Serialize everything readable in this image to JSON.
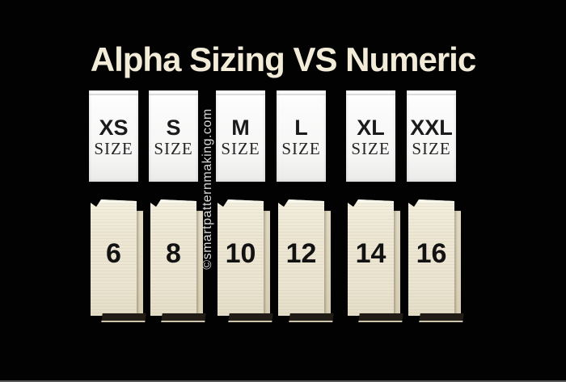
{
  "title": "Alpha Sizing VS Numeric",
  "watermark": "©smartpatternmaking.com",
  "colors": {
    "background": "#020202",
    "title_text": "#f1ebd8",
    "alpha_label_bg": "#fbfbfb",
    "numeric_label_bg": "#ece6d3",
    "label_text": "#1b1b1b",
    "watermark_text": "#d8d8d8"
  },
  "labels": [
    {
      "alpha": "XS",
      "size_word": "SIZE",
      "numeric": "6"
    },
    {
      "alpha": "S",
      "size_word": "SIZE",
      "numeric": "8"
    },
    {
      "alpha": "M",
      "size_word": "SIZE",
      "numeric": "10"
    },
    {
      "alpha": "L",
      "size_word": "SIZE",
      "numeric": "12"
    },
    {
      "alpha": "XL",
      "size_word": "SIZE",
      "numeric": "14"
    },
    {
      "alpha": "XXL",
      "size_word": "SIZE",
      "numeric": "16"
    }
  ]
}
